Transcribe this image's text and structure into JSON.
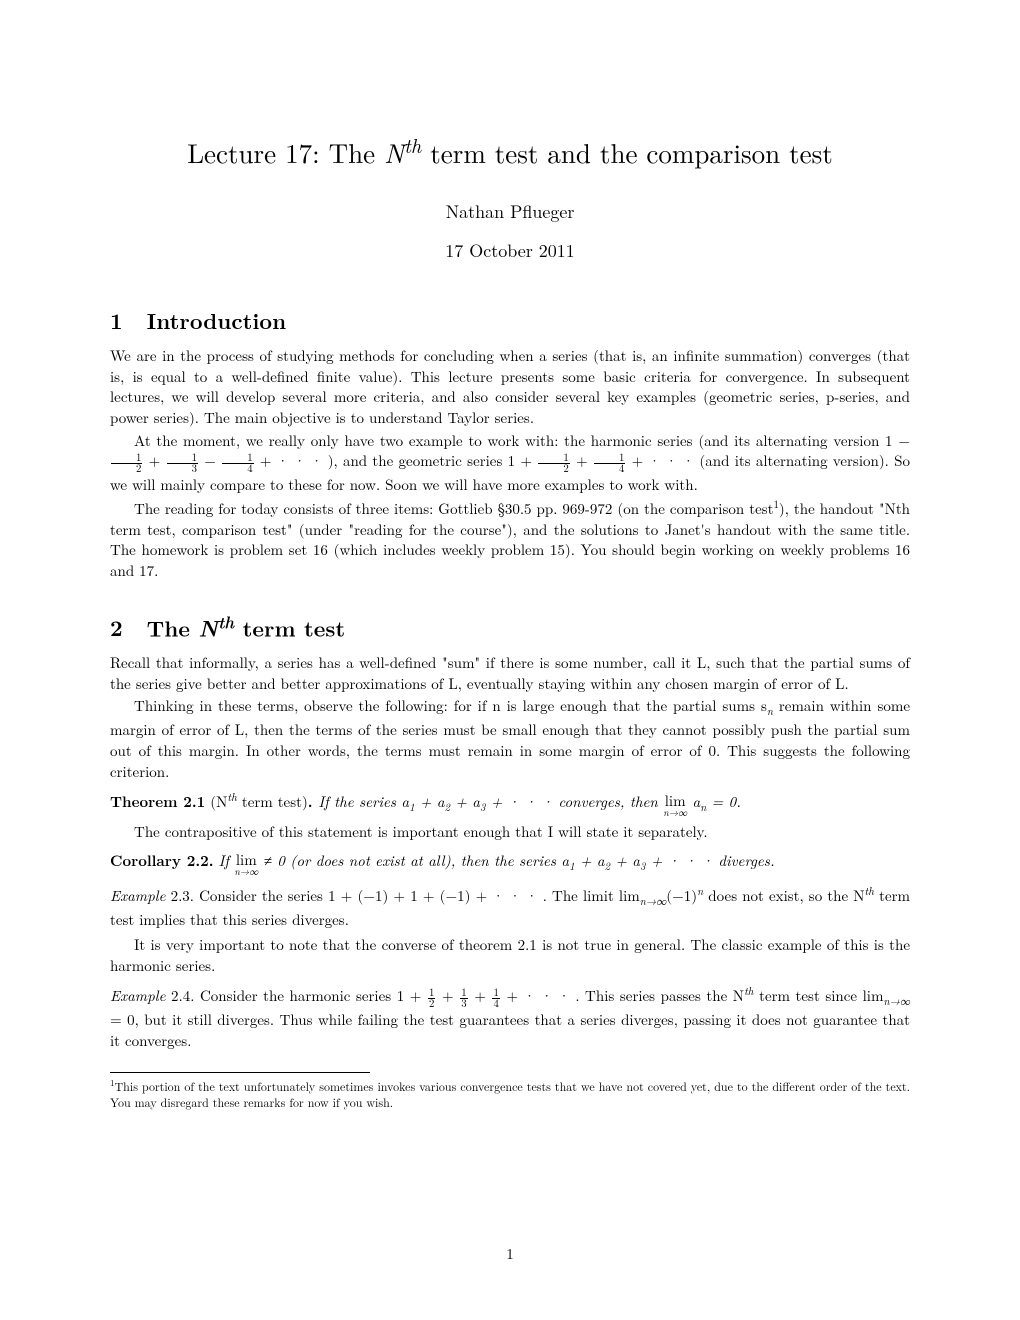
{
  "title_pre": "Lecture 17: The ",
  "title_N": "N",
  "title_th": "th",
  "title_post": " term test and the comparison test",
  "author": "Nathan Pflueger",
  "date": "17 October 2011",
  "sec1": {
    "num": "1",
    "name": "Introduction"
  },
  "intro_p1": "We are in the process of studying methods for concluding when a series (that is, an infinite summation) converges (that is, is equal to a well-defined finite value). This lecture presents some basic criteria for convergence. In subsequent lectures, we will develop several more criteria, and also consider several key examples (geometric series, p-series, and power series). The main objective is to understand Taylor series.",
  "intro_p2a": "At the moment, we really only have two example to work with: the harmonic series (and its alternating version 1 − ",
  "intro_p2b": " + ",
  "intro_p2c": " − ",
  "intro_p2d": " + · · · ), and the geometric series 1 + ",
  "intro_p2e": " + ",
  "intro_p2f": " + · · · (and its alternating version). So we will mainly compare to these for now. Soon we will have more examples to work with.",
  "intro_p3a": "The reading for today consists of three items: Gottlieb §30.5 pp. 969-972 (on the comparison test",
  "intro_p3b": "), the handout \"Nth term test, comparison test\" (under \"reading for the course\"), and the solutions to Janet's handout with the same title. The homework is problem set 16 (which includes weekly problem 15). You should begin working on weekly problems 16 and 17.",
  "sec2": {
    "num": "2",
    "pre": "The ",
    "N": "N",
    "th": "th",
    "post": " term test"
  },
  "s2_p1": "Recall that informally, a series has a well-defined \"sum\" if there is some number, call it L, such that the partial sums of the series give better and better approximations of L, eventually staying within any chosen margin of error of L.",
  "s2_p2_a": "Thinking in these terms, observe the following: for if n is large enough that the partial sums s",
  "s2_p2_b": " remain within some margin of error of L, then the terms of the series must be small enough that they cannot possibly push the partial sum out of this margin. In other words, the terms must remain in some margin of error of 0. This suggests the following criterion.",
  "thm21_head": "Theorem 2.1",
  "thm21_paren_pre": " (N",
  "thm21_paren_th": "th",
  "thm21_paren_post": " term test)",
  "thm21_body_a": "If the series a",
  "thm21_body_b": " + a",
  "thm21_body_c": " + a",
  "thm21_body_d": " + · · ·  converges, then ",
  "thm21_lim": "lim",
  "thm21_limsub": "n→∞",
  "thm21_body_e": " a",
  "thm21_body_f": " = 0.",
  "s2_p3": "The contrapositive of this statement is important enough that I will state it separately.",
  "cor22_head": "Corollary 2.2.",
  "cor22_a": "If ",
  "cor22_lim": "lim",
  "cor22_limsub": "n→∞",
  "cor22_b": " ≠ 0 (or does not exist at all), then the series a",
  "cor22_c": " + a",
  "cor22_d": " + a",
  "cor22_e": " + · · ·  diverges.",
  "ex23_head": "Example",
  "ex23_num": " 2.3.",
  "ex23_a": " Consider the series 1 + (−1) + 1 + (−1) + · · · . The limit lim",
  "ex23_sub": "n→∞",
  "ex23_b": "(−1)",
  "ex23_c": " does not exist, so the N",
  "ex23_th": "th",
  "ex23_d": " term test implies that this series diverges.",
  "s2_p4": "It is very important to note that the converse of theorem 2.1 is not true in general. The classic example of this is the harmonic series.",
  "ex24_head": "Example",
  "ex24_num": " 2.4.",
  "ex24_a": " Consider the harmonic series 1 + ",
  "ex24_b": " + ",
  "ex24_c": " + ",
  "ex24_d": " + · · · . This series passes the N",
  "ex24_th": "th",
  "ex24_e": " term test since lim",
  "ex24_sub": "n→∞",
  "ex24_f": " = 0, but it still diverges. Thus while failing the test guarantees that a series diverges, passing it does not guarantee that it converges.",
  "footnote_mark": "1",
  "footnote_text": "This portion of the text unfortunately sometimes invokes various convergence tests that we have not covered yet, due to the different order of the text. You may disregard these remarks for now if you wish.",
  "pagenum": "1",
  "fractions": {
    "half": {
      "n": "1",
      "d": "2"
    },
    "third": {
      "n": "1",
      "d": "3"
    },
    "quarter": {
      "n": "1",
      "d": "4"
    }
  },
  "colors": {
    "text": "#000000",
    "background": "#ffffff"
  },
  "fonts": {
    "body_size_pt": 15,
    "title_size_pt": 27,
    "section_size_pt": 22,
    "footnote_size_pt": 12
  }
}
